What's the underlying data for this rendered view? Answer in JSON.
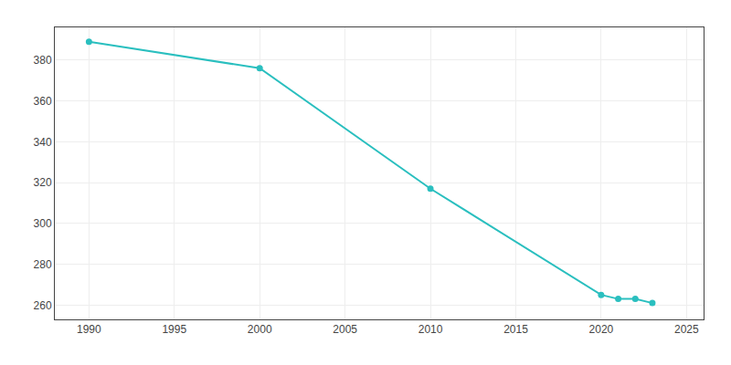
{
  "chart_data": {
    "type": "line",
    "x": [
      1990,
      2000,
      2010,
      2020,
      2021,
      2022,
      2023
    ],
    "values": [
      389,
      376,
      317,
      265,
      263,
      263,
      261
    ],
    "color": "#2abfbf",
    "marker": "circle",
    "xlim": [
      1988,
      2026
    ],
    "xticks": [
      1990,
      1995,
      2000,
      2005,
      2010,
      2015,
      2020,
      2025
    ],
    "ylim": [
      253,
      396
    ],
    "yticks": [
      260,
      280,
      300,
      320,
      340,
      360,
      380
    ],
    "grid": true
  }
}
